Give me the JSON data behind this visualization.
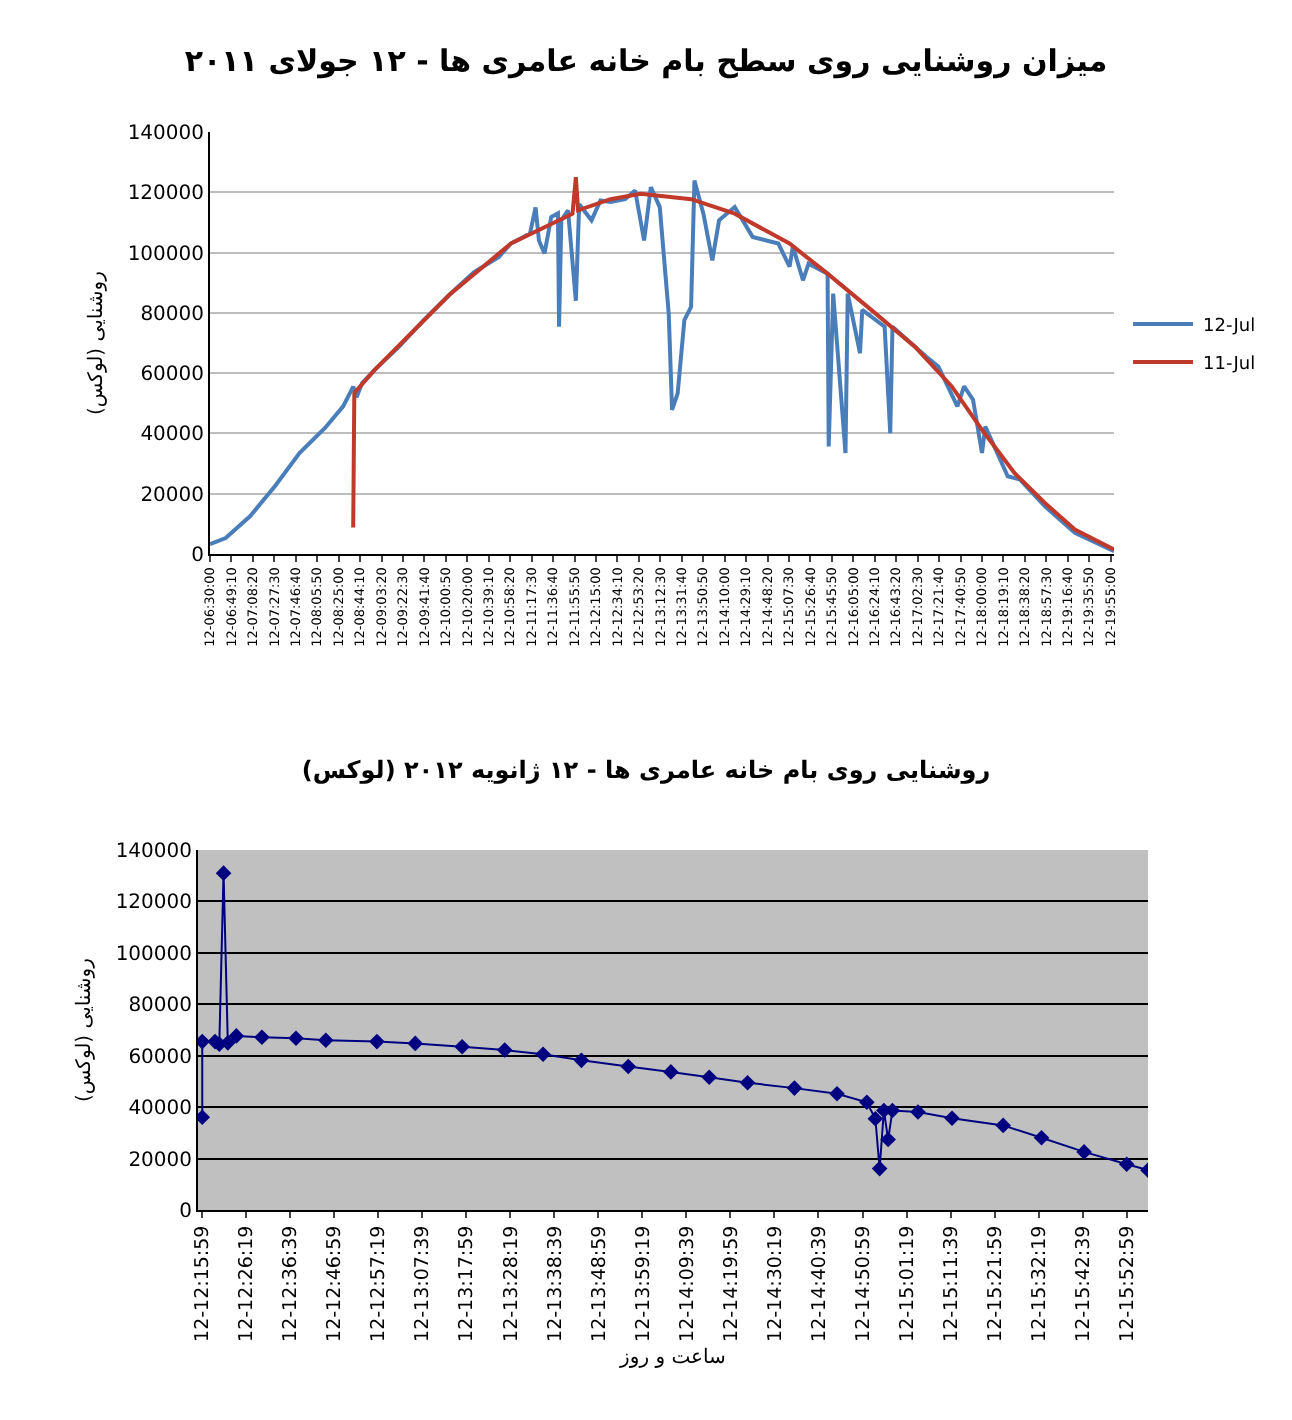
{
  "chart_data": [
    {
      "type": "line",
      "title": "میزان روشنایی روی سطح بام خانه عامری ها - ۱۲ جولای ۲۰۱۱",
      "ylabel": "روشنایی (لوکس)",
      "xlim": [
        "--07-12T06:30",
        "--07-12T19:58"
      ],
      "ylim": [
        0,
        140000
      ],
      "yticks": [
        0,
        20000,
        40000,
        60000,
        80000,
        100000,
        120000,
        140000
      ],
      "xticks": [
        {
          "value": "--07-12T06:30:00",
          "label": "12-06:30:00"
        },
        {
          "value": "--07-12T06:49:10",
          "label": "12-06:49:10"
        },
        {
          "value": "--07-12T07:08:20",
          "label": "12-07:08:20"
        },
        {
          "value": "--07-12T07:27:30",
          "label": "12-07:27:30"
        },
        {
          "value": "--07-12T07:46:40",
          "label": "12-07:46:40"
        },
        {
          "value": "--07-12T08:05:50",
          "label": "12-08:05:50"
        },
        {
          "value": "--07-12T08:25:00",
          "label": "12-08:25:00"
        },
        {
          "value": "--07-12T08:44:10",
          "label": "12-08:44:10"
        },
        {
          "value": "--07-12T09:03:20",
          "label": "12-09:03:20"
        },
        {
          "value": "--07-12T09:22:30",
          "label": "12-09:22:30"
        },
        {
          "value": "--07-12T09:41:40",
          "label": "12-09:41:40"
        },
        {
          "value": "--07-12T10:00:50",
          "label": "12-10:00:50"
        },
        {
          "value": "--07-12T10:20:00",
          "label": "12-10:20:00"
        },
        {
          "value": "--07-12T10:39:10",
          "label": "12-10:39:10"
        },
        {
          "value": "--07-12T10:58:20",
          "label": "12-10:58:20"
        },
        {
          "value": "--07-12T11:17:30",
          "label": "12-11:17:30"
        },
        {
          "value": "--07-12T11:36:40",
          "label": "12-11:36:40"
        },
        {
          "value": "--07-12T11:55:50",
          "label": "12-11:55:50"
        },
        {
          "value": "--07-12T12:15:00",
          "label": "12-12:15:00"
        },
        {
          "value": "--07-12T12:34:10",
          "label": "12-12:34:10"
        },
        {
          "value": "--07-12T12:53:20",
          "label": "12-12:53:20"
        },
        {
          "value": "--07-12T13:12:30",
          "label": "12-13:12:30"
        },
        {
          "value": "--07-12T13:31:40",
          "label": "12-13:31:40"
        },
        {
          "value": "--07-12T13:50:50",
          "label": "12-13:50:50"
        },
        {
          "value": "--07-12T14:10:00",
          "label": "12-14:10:00"
        },
        {
          "value": "--07-12T14:29:10",
          "label": "12-14:29:10"
        },
        {
          "value": "--07-12T14:48:20",
          "label": "12-14:48:20"
        },
        {
          "value": "--07-12T15:07:30",
          "label": "12-15:07:30"
        },
        {
          "value": "--07-12T15:26:40",
          "label": "12-15:26:40"
        },
        {
          "value": "--07-12T15:45:50",
          "label": "12-15:45:50"
        },
        {
          "value": "--07-12T16:05:00",
          "label": "12-16:05:00"
        },
        {
          "value": "--07-12T16:24:10",
          "label": "12-16:24:10"
        },
        {
          "value": "--07-12T16:43:20",
          "label": "12-16:43:20"
        },
        {
          "value": "--07-12T17:02:30",
          "label": "12-17:02:30"
        },
        {
          "value": "--07-12T17:21:40",
          "label": "12-17:21:40"
        },
        {
          "value": "--07-12T17:40:50",
          "label": "12-17:40:50"
        },
        {
          "value": "--07-12T18:00:00",
          "label": "12-18:00:00"
        },
        {
          "value": "--07-12T18:19:10",
          "label": "12-18:19:10"
        },
        {
          "value": "--07-12T18:38:20",
          "label": "12-18:38:20"
        },
        {
          "value": "--07-12T18:57:30",
          "label": "12-18:57:30"
        },
        {
          "value": "--07-12T19:16:40",
          "label": "12-19:16:40"
        },
        {
          "value": "--07-12T19:35:50",
          "label": "12-19:35:50"
        },
        {
          "value": "--07-12T19:55:00",
          "label": "12-19:55:00"
        }
      ],
      "grid": "y",
      "legend": "right",
      "series": [
        {
          "name": "12-Jul",
          "color": "#4a7ebb",
          "x": [
            "--07-12T06:30",
            "--07-12T06:44",
            "--07-12T07:06",
            "--07-12T07:28",
            "--07-12T07:50",
            "--07-12T08:13",
            "--07-12T08:29",
            "--07-12T08:38",
            "--07-12T08:41",
            "--07-12T08:46",
            "--07-12T08:57",
            "--07-12T09:19",
            "--07-12T09:41",
            "--07-12T10:04",
            "--07-12T10:26",
            "--07-12T10:48",
            "--07-12T10:59",
            "--07-12T11:16",
            "--07-12T11:21",
            "--07-12T11:24",
            "--07-12T11:29",
            "--07-12T11:35",
            "--07-12T11:41",
            "--07-12T11:42",
            "--07-12T11:44",
            "--07-12T11:50",
            "--07-12T11:57",
            "--07-12T12:00",
            "--07-12T12:11",
            "--07-12T12:19",
            "--07-12T12:28",
            "--07-12T12:41",
            "--07-12T12:50",
            "--07-12T12:58",
            "--07-12T13:04",
            "--07-12T13:12",
            "--07-12T13:20",
            "--07-12T13:23",
            "--07-12T13:28",
            "--07-12T13:34",
            "--07-12T13:40",
            "--07-12T13:43",
            "--07-12T13:51",
            "--07-12T13:59",
            "--07-12T14:05",
            "--07-12T14:19",
            "--07-12T14:35",
            "--07-12T14:58",
            "--07-12T15:08",
            "--07-12T15:11",
            "--07-12T15:20",
            "--07-12T15:25",
            "--07-12T15:42",
            "--07-12T15:43",
            "--07-12T15:47",
            "--07-12T15:58",
            "--07-12T16:00",
            "--07-12T16:11",
            "--07-12T16:13",
            "--07-12T16:33",
            "--07-12T16:38",
            "--07-12T16:40",
            "--07-12T17:10",
            "--07-12T17:21",
            "--07-12T17:38",
            "--07-12T17:44",
            "--07-12T17:52",
            "--07-12T18:00",
            "--07-12T18:03",
            "--07-12T18:23",
            "--07-12T18:34",
            "--07-12T18:56",
            "--07-12T19:23",
            "--07-12T19:58"
          ],
          "values": [
            3300,
            5300,
            12600,
            22500,
            33500,
            41900,
            49000,
            55500,
            52000,
            56700,
            61000,
            68800,
            77600,
            86000,
            93500,
            98500,
            103000,
            106300,
            115000,
            104000,
            99700,
            111800,
            113000,
            75400,
            110700,
            114000,
            84000,
            116000,
            110700,
            117300,
            116800,
            117700,
            120600,
            104000,
            121700,
            115100,
            79800,
            47800,
            53300,
            77600,
            82000,
            123900,
            112900,
            97400,
            110700,
            115100,
            105200,
            103000,
            95300,
            102000,
            90800,
            96300,
            93000,
            35700,
            86400,
            33500,
            86400,
            66600,
            81000,
            75400,
            40100,
            75400,
            65500,
            62200,
            49000,
            55600,
            51200,
            33500,
            42300,
            25800,
            24700,
            15900,
            7000,
            900
          ]
        },
        {
          "name": "11-Jul",
          "color": "#c0392b",
          "x": [
            "--07-12T08:38",
            "--07-12T08:39",
            "--07-12T08:57",
            "--07-12T10:04",
            "--07-12T10:59",
            "--07-12T11:54",
            "--07-12T11:57",
            "--07-12T11:59",
            "--07-12T12:28",
            "--07-12T12:55",
            "--07-12T13:40",
            "--07-12T14:19",
            "--07-12T15:08",
            "--07-12T15:42",
            "--07-12T16:21",
            "--07-12T17:00",
            "--07-12T17:33",
            "--07-12T18:00",
            "--07-12T18:29",
            "--07-12T18:56",
            "--07-12T19:23",
            "--07-12T19:58"
          ],
          "values": [
            8800,
            53400,
            61000,
            86000,
            103000,
            112900,
            125000,
            114000,
            117700,
            119500,
            117700,
            112900,
            103000,
            93000,
            81000,
            68800,
            55600,
            41200,
            26900,
            17000,
            8100,
            1500
          ]
        }
      ]
    },
    {
      "type": "line",
      "title": "روشنایی روی بام خانه عامری ها - ۱۲ ژانویه ۲۰۱۲ (لوکس)",
      "ylabel": "روشنایی (لوکس)",
      "xlabel": "ساعت و روز",
      "xlim": [
        "--01-12T12:15",
        "--01-12T15:58"
      ],
      "ylim": [
        0,
        140000
      ],
      "yticks": [
        0,
        20000,
        40000,
        60000,
        80000,
        100000,
        120000,
        140000
      ],
      "xticks": [
        {
          "value": "--01-12T12:15:59",
          "label": "12-12:15:59"
        },
        {
          "value": "--01-12T12:26:19",
          "label": "12-12:26:19"
        },
        {
          "value": "--01-12T12:36:39",
          "label": "12-12:36:39"
        },
        {
          "value": "--01-12T12:46:59",
          "label": "12-12:46:59"
        },
        {
          "value": "--01-12T12:57:19",
          "label": "12-12:57:19"
        },
        {
          "value": "--01-12T13:07:39",
          "label": "12-13:07:39"
        },
        {
          "value": "--01-12T13:17:59",
          "label": "12-13:17:59"
        },
        {
          "value": "--01-12T13:28:19",
          "label": "12-13:28:19"
        },
        {
          "value": "--01-12T13:38:39",
          "label": "12-13:38:39"
        },
        {
          "value": "--01-12T13:48:59",
          "label": "12-13:48:59"
        },
        {
          "value": "--01-12T13:59:19",
          "label": "12-13:59:19"
        },
        {
          "value": "--01-12T14:09:39",
          "label": "12-14:09:39"
        },
        {
          "value": "--01-12T14:19:59",
          "label": "12-14:19:59"
        },
        {
          "value": "--01-12T14:30:19",
          "label": "12-14:30:19"
        },
        {
          "value": "--01-12T14:40:39",
          "label": "12-14:40:39"
        },
        {
          "value": "--01-12T14:50:59",
          "label": "12-14:50:59"
        },
        {
          "value": "--01-12T15:01:19",
          "label": "12-15:01:19"
        },
        {
          "value": "--01-12T15:11:39",
          "label": "12-15:11:39"
        },
        {
          "value": "--01-12T15:21:59",
          "label": "12-15:21:59"
        },
        {
          "value": "--01-12T15:32:19",
          "label": "12-15:32:19"
        },
        {
          "value": "--01-12T15:42:39",
          "label": "12-15:42:39"
        },
        {
          "value": "--01-12T15:52:59",
          "label": "12-15:52:59"
        }
      ],
      "grid": "y",
      "marker": "diamond",
      "series": [
        {
          "color": "#000080",
          "x": [
            "--01-12T12:16",
            "--01-12T12:16",
            "--01-12T12:19",
            "--01-12T12:20",
            "--01-12T12:21",
            "--01-12T12:22",
            "--01-12T12:24",
            "--01-12T12:30",
            "--01-12T12:38",
            "--01-12T12:45",
            "--01-12T12:57",
            "--01-12T13:06",
            "--01-12T13:17",
            "--01-12T13:27",
            "--01-12T13:36",
            "--01-12T13:45",
            "--01-12T13:56",
            "--01-12T14:06",
            "--01-12T14:15",
            "--01-12T14:24",
            "--01-12T14:35",
            "--01-12T14:45",
            "--01-12T14:52",
            "--01-12T14:54",
            "--01-12T14:55",
            "--01-12T14:56",
            "--01-12T14:57",
            "--01-12T14:58",
            "--01-12T15:04",
            "--01-12T15:12",
            "--01-12T15:24",
            "--01-12T15:33",
            "--01-12T15:43",
            "--01-12T15:53",
            "--01-12T15:58"
          ],
          "values": [
            36100,
            65500,
            65500,
            64500,
            131000,
            65000,
            67700,
            67200,
            66800,
            66000,
            65500,
            64800,
            63500,
            62200,
            60600,
            58200,
            55800,
            53700,
            51600,
            49500,
            47400,
            45200,
            41900,
            35500,
            16100,
            38700,
            27400,
            38700,
            38100,
            35700,
            32900,
            28100,
            22600,
            17800,
            15500
          ]
        }
      ]
    }
  ]
}
